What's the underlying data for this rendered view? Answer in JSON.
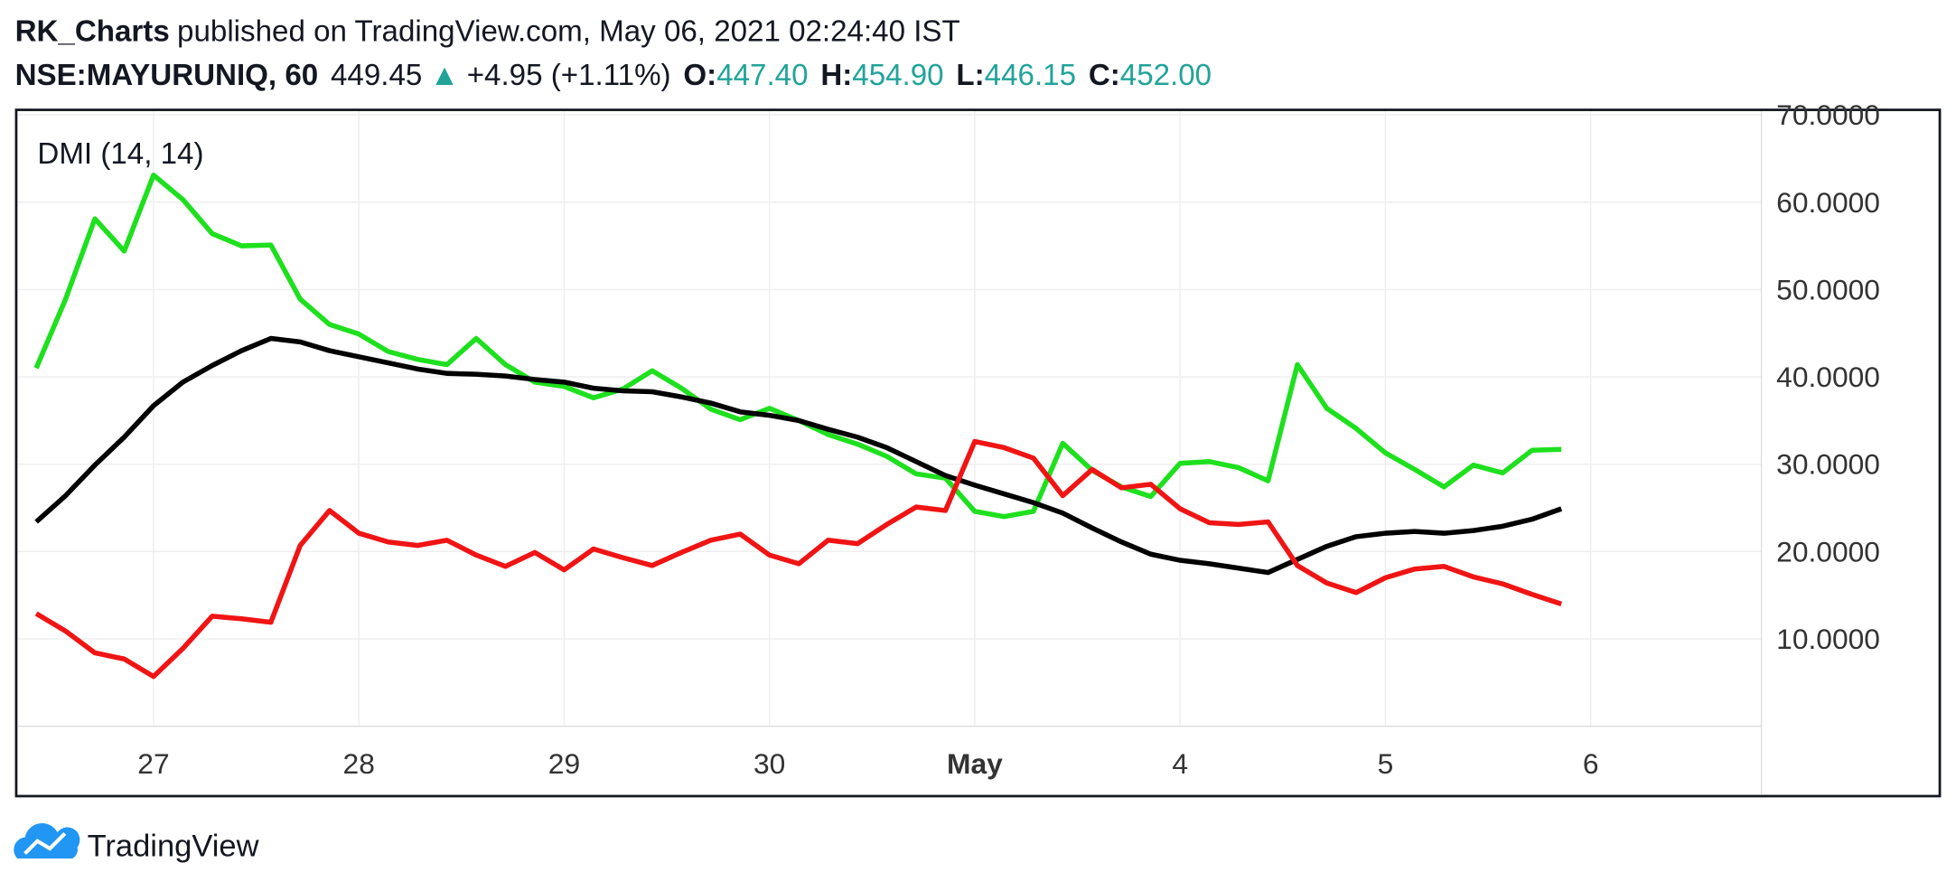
{
  "header": {
    "author": "RK_Charts",
    "published": "published on TradingView.com, May 06, 2021 02:24:40 IST",
    "symbol": "NSE:MAYURUNIQ, 60",
    "price": "449.45",
    "change_arrow": "▲",
    "change": "+4.95 (+1.11%)",
    "ohlc": [
      {
        "label": "O:",
        "value": "447.40"
      },
      {
        "label": "H:",
        "value": "454.90"
      },
      {
        "label": "L:",
        "value": "446.15"
      },
      {
        "label": "C:",
        "value": "452.00"
      }
    ]
  },
  "footer": {
    "brand": "TradingView"
  },
  "chart_data": {
    "type": "line",
    "title": "DMI (14, 14)",
    "x": [
      0,
      1,
      2,
      3,
      4,
      5,
      6,
      7,
      8,
      9,
      10,
      11,
      12,
      13,
      14,
      15,
      16,
      17,
      18,
      19,
      20,
      21,
      22,
      23,
      24,
      25,
      26,
      27,
      28,
      29,
      30,
      31,
      32,
      33,
      34,
      35,
      36,
      37,
      38,
      39,
      40,
      41,
      42,
      43,
      44,
      45,
      46,
      47,
      48,
      49,
      50,
      51,
      52
    ],
    "series": [
      {
        "color": "#1ee01e",
        "values": [
          41,
          48.9,
          58.1,
          54.4,
          63.1,
          60.3,
          56.4,
          55,
          55.1,
          48.9,
          46,
          44.9,
          42.9,
          42,
          41.4,
          44.4,
          41.4,
          39.4,
          38.9,
          37.6,
          38.6,
          40.7,
          38.7,
          36.3,
          35.1,
          36.4,
          35,
          33.4,
          32.3,
          30.9,
          28.9,
          28.4,
          24.6,
          24,
          24.6,
          32.4,
          29.3,
          27.4,
          26.3,
          30.1,
          30.3,
          29.6,
          28.1,
          41.4,
          36.4,
          34.1,
          31.3,
          29.4,
          27.4,
          29.9,
          29,
          31.6,
          31.7
        ]
      },
      {
        "color": "#000000",
        "values": [
          23.4,
          26.4,
          29.9,
          33.1,
          36.7,
          39.4,
          41.3,
          43,
          44.4,
          44,
          43,
          42.3,
          41.6,
          40.9,
          40.4,
          40.3,
          40.1,
          39.7,
          39.4,
          38.7,
          38.4,
          38.3,
          37.7,
          37,
          36,
          35.6,
          35,
          34,
          33.1,
          31.9,
          30.3,
          28.7,
          27.6,
          26.6,
          25.6,
          24.4,
          22.7,
          21.1,
          19.7,
          19,
          18.6,
          18.1,
          17.6,
          19.1,
          20.6,
          21.7,
          22.1,
          22.3,
          22.1,
          22.4,
          22.9,
          23.7,
          24.9
        ]
      },
      {
        "color": "#f01414",
        "values": [
          12.9,
          10.9,
          8.4,
          7.7,
          5.7,
          8.9,
          12.6,
          12.3,
          11.9,
          20.7,
          24.7,
          22.1,
          21.1,
          20.7,
          21.3,
          19.6,
          18.3,
          19.9,
          17.9,
          20.3,
          19.3,
          18.4,
          19.9,
          21.3,
          22,
          19.6,
          18.6,
          21.3,
          20.9,
          23.1,
          25.1,
          24.7,
          32.6,
          31.9,
          30.7,
          26.4,
          29.4,
          27.3,
          27.7,
          24.9,
          23.3,
          23.1,
          23.4,
          18.4,
          16.4,
          15.3,
          17,
          18,
          18.3,
          17.1,
          16.3,
          15.1,
          14
        ]
      }
    ],
    "xlim": [
      -0.64,
      58.82
    ],
    "xticks": [
      {
        "value": 4,
        "label": "27"
      },
      {
        "value": 11,
        "label": "28"
      },
      {
        "value": 18,
        "label": "29"
      },
      {
        "value": 25,
        "label": "30"
      },
      {
        "value": 32,
        "label": "May"
      },
      {
        "value": 39,
        "label": "4"
      },
      {
        "value": 46,
        "label": "5"
      },
      {
        "value": 53,
        "label": "6"
      }
    ],
    "ylim": [
      0,
      70.57
    ],
    "yticks": [
      {
        "value": 10,
        "label": "10.0000"
      },
      {
        "value": 20,
        "label": "20.0000"
      },
      {
        "value": 30,
        "label": "30.0000"
      },
      {
        "value": 40,
        "label": "40.0000"
      },
      {
        "value": 50,
        "label": "50.0000"
      },
      {
        "value": 60,
        "label": "60.0000"
      },
      {
        "value": 70,
        "label": "70.0000"
      }
    ],
    "grid": true
  }
}
